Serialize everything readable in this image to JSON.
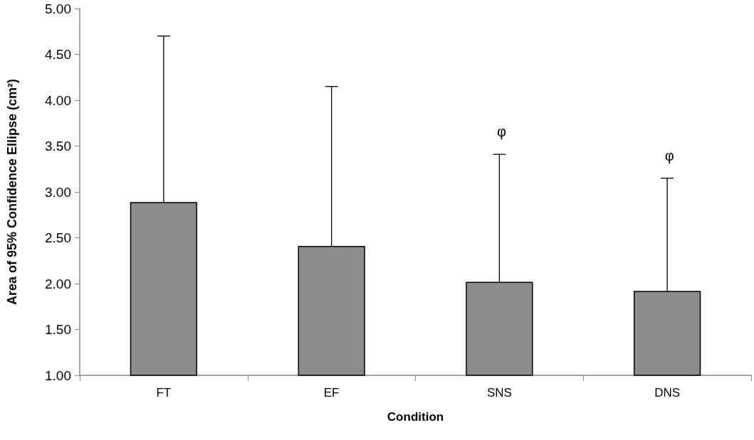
{
  "chart_data": {
    "type": "bar",
    "xlabel": "Condition",
    "ylabel": "Area of 95% Confidence Ellipse (cm²)",
    "categories": [
      "FT",
      "EF",
      "SNS",
      "DNS"
    ],
    "values": [
      2.89,
      2.41,
      2.02,
      1.92
    ],
    "errors": [
      [
        2.89,
        4.7
      ],
      [
        2.41,
        4.15
      ],
      [
        2.02,
        3.41
      ],
      [
        1.92,
        3.15
      ]
    ],
    "color": "#8c8c8c",
    "ylim": [
      1,
      5
    ],
    "yticks": [
      {
        "value": 1,
        "label": "1.00"
      },
      {
        "value": 1.5,
        "label": "1.50"
      },
      {
        "value": 2,
        "label": "2.00"
      },
      {
        "value": 2.5,
        "label": "2.50"
      },
      {
        "value": 3,
        "label": "3.00"
      },
      {
        "value": 3.5,
        "label": "3.50"
      },
      {
        "value": 4,
        "label": "4.00"
      },
      {
        "value": 4.5,
        "label": "4.50"
      },
      {
        "value": 5,
        "label": "5.00"
      }
    ],
    "grid": false,
    "annotations": [
      {
        "text": "φ",
        "x": "SNS",
        "y": 3.41
      },
      {
        "text": "φ",
        "x": "DNS",
        "y": 3.15
      }
    ]
  }
}
